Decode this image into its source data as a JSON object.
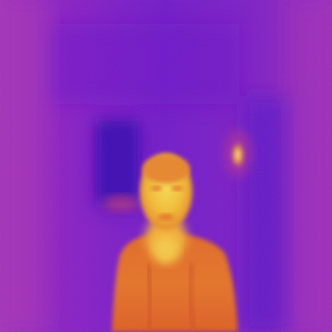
{
  "image": {
    "kind": "thermal-camera-frame",
    "palette": "iron",
    "subject": "person",
    "colors": {
      "background_cool": "#6a1fc8",
      "background_mid": "#8b25c2",
      "background_warm": "#a032b8",
      "shadow_dark": "#4a14b8",
      "body_warm": "#e06a1c",
      "body_hot": "#f2a81e",
      "face_hottest": "#fbe64a",
      "lamp_hot": "#fff0a0"
    }
  }
}
